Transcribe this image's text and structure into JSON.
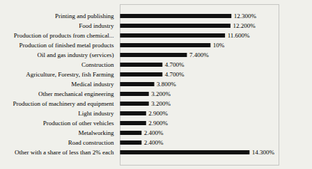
{
  "chart_data": {
    "type": "bar",
    "orientation": "horizontal",
    "categories": [
      "Other with a share of less than 2% each",
      "Road construction",
      "Metalworking",
      "Production of other vehicles",
      "Light industry",
      "Production of machinery and equipment",
      "Other mechanical engineering",
      "Medical industry",
      "Agriculture, Forestry, fish Farming",
      "Construction",
      "Oil and gas industry (services)",
      "Production of finished metal products",
      "Production of products from chemical...",
      "Food industry",
      "Printing and publishing"
    ],
    "values": [
      14.3,
      2.4,
      2.4,
      2.9,
      2.9,
      3.2,
      3.2,
      3.8,
      4.7,
      4.7,
      7.4,
      10.0,
      11.6,
      12.2,
      12.3
    ],
    "value_labels": [
      "14.300%",
      "2.400%",
      "2.400%",
      "2.900%",
      "2.900%",
      "3.200%",
      "3.200%",
      "3.800%",
      "4.700%",
      "4.700%",
      "7.400%",
      "10%",
      "11.600%",
      "12.200%",
      "12.300%"
    ],
    "data_labels": true,
    "color": "#111111",
    "xlim": [
      0,
      17.5
    ],
    "tick_labels": "y",
    "grid": false
  }
}
